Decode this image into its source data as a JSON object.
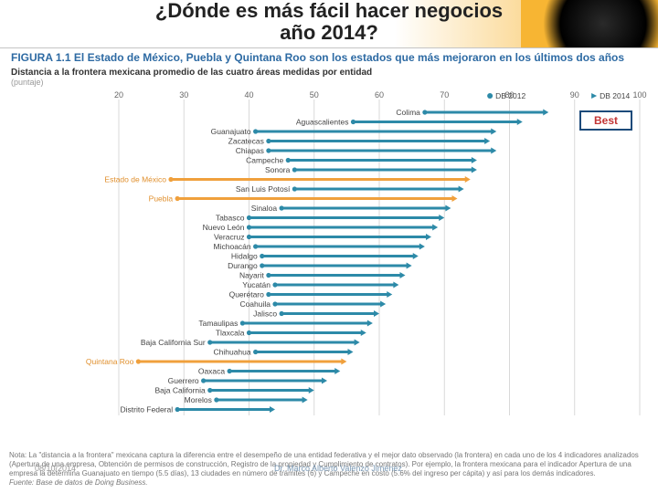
{
  "header": {
    "title_line1": "¿Dónde es más fácil hacer negocios",
    "title_line2": "año 2014?",
    "title_fontsize": 22,
    "title_color": "#3a3a3a"
  },
  "figure_caption": "FIGURA 1.1 El Estado de México, Puebla y Quintana Roo son los estados que más mejoraron en los últimos dos años",
  "subtitle_line1": "Distancia a la frontera mexicana promedio de las cuatro áreas medidas por entidad",
  "subtitle_line2": "(puntaje)",
  "legend": {
    "db2012": "DB 2012",
    "db2014": "DB 2014"
  },
  "x_axis": {
    "min": 20,
    "max": 100,
    "ticks": [
      20,
      30,
      40,
      50,
      60,
      70,
      80,
      90,
      100
    ]
  },
  "colors": {
    "arrow_default": "#2d8aa8",
    "arrow_highlight": "#f0a03c",
    "gridline": "#d9d9d9",
    "label_default": "#444444",
    "label_highlight": "#e08f2c",
    "header_accent": "#f7b533",
    "caption": "#2d6aa3",
    "note": "#777777",
    "best_border": "#1c4a7a",
    "best_text": "#c23434"
  },
  "row_height": 10.5,
  "rows": [
    {
      "label": "Colima",
      "from": 67,
      "to": 86,
      "highlight": false
    },
    {
      "label": "Aguascalientes",
      "from": 56,
      "to": 82,
      "highlight": false
    },
    {
      "label": "Guanajuato",
      "from": 41,
      "to": 78,
      "highlight": false
    },
    {
      "label": "Zacatecas",
      "from": 43,
      "to": 77,
      "highlight": false
    },
    {
      "label": "Chiapas",
      "from": 43,
      "to": 78,
      "highlight": false
    },
    {
      "label": "Campeche",
      "from": 46,
      "to": 75,
      "highlight": false
    },
    {
      "label": "Sonora",
      "from": 47,
      "to": 75,
      "highlight": false
    },
    {
      "label": "Estado de México",
      "from": 28,
      "to": 74,
      "highlight": true
    },
    {
      "label": "San Luis Potosí",
      "from": 47,
      "to": 73,
      "highlight": false
    },
    {
      "label": "Puebla",
      "from": 29,
      "to": 72,
      "highlight": true
    },
    {
      "label": "Sinaloa",
      "from": 45,
      "to": 71,
      "highlight": false
    },
    {
      "label": "Tabasco",
      "from": 40,
      "to": 70,
      "highlight": false
    },
    {
      "label": "Nuevo León",
      "from": 40,
      "to": 69,
      "highlight": false
    },
    {
      "label": "Veracruz",
      "from": 40,
      "to": 68,
      "highlight": false
    },
    {
      "label": "Michoacán",
      "from": 41,
      "to": 67,
      "highlight": false
    },
    {
      "label": "Hidalgo",
      "from": 42,
      "to": 66,
      "highlight": false
    },
    {
      "label": "Durango",
      "from": 42,
      "to": 65,
      "highlight": false
    },
    {
      "label": "Nayarit",
      "from": 43,
      "to": 64,
      "highlight": false
    },
    {
      "label": "Yucatán",
      "from": 44,
      "to": 63,
      "highlight": false
    },
    {
      "label": "Querétaro",
      "from": 43,
      "to": 62,
      "highlight": false
    },
    {
      "label": "Coahuila",
      "from": 44,
      "to": 61,
      "highlight": false
    },
    {
      "label": "Jalisco",
      "from": 45,
      "to": 60,
      "highlight": false
    },
    {
      "label": "Tamaulipas",
      "from": 39,
      "to": 59,
      "highlight": false
    },
    {
      "label": "Tlaxcala",
      "from": 40,
      "to": 58,
      "highlight": false
    },
    {
      "label": "Baja California Sur",
      "from": 34,
      "to": 57,
      "highlight": false
    },
    {
      "label": "Chihuahua",
      "from": 41,
      "to": 56,
      "highlight": false
    },
    {
      "label": "Quintana Roo",
      "from": 23,
      "to": 55,
      "highlight": true
    },
    {
      "label": "Oaxaca",
      "from": 37,
      "to": 54,
      "highlight": false
    },
    {
      "label": "Guerrero",
      "from": 33,
      "to": 52,
      "highlight": false
    },
    {
      "label": "Baja California",
      "from": 34,
      "to": 50,
      "highlight": false
    },
    {
      "label": "Morelos",
      "from": 35,
      "to": 49,
      "highlight": false
    },
    {
      "label": "Distrito Federal",
      "from": 29,
      "to": 44,
      "highlight": false
    }
  ],
  "best_label": "Best",
  "note_text": "Nota: La \"distancia a la frontera\" mexicana captura la diferencia entre el desempeño de una entidad federativa y el mejor dato observado (la frontera) en cada uno de los 4 indicadores analizados (Apertura de una empresa, Obtención de permisos de construcción, Registro de la propiedad y Cumplimiento de contratos). Por ejemplo, la frontera mexicana para el indicador Apertura de una empresa la determina Guanajuato en tiempo (5.5 días), 13 ciudades en número de trámites (6) y Campeche en costo (5.6% del ingreso per cápita) y así para los demás indicadores.",
  "note_source": "Fuente: Base de datos de Doing Business.",
  "footer": {
    "date": "08/10/2014",
    "author": "Dr. Marco Alberto Valenzo Jiménez"
  }
}
